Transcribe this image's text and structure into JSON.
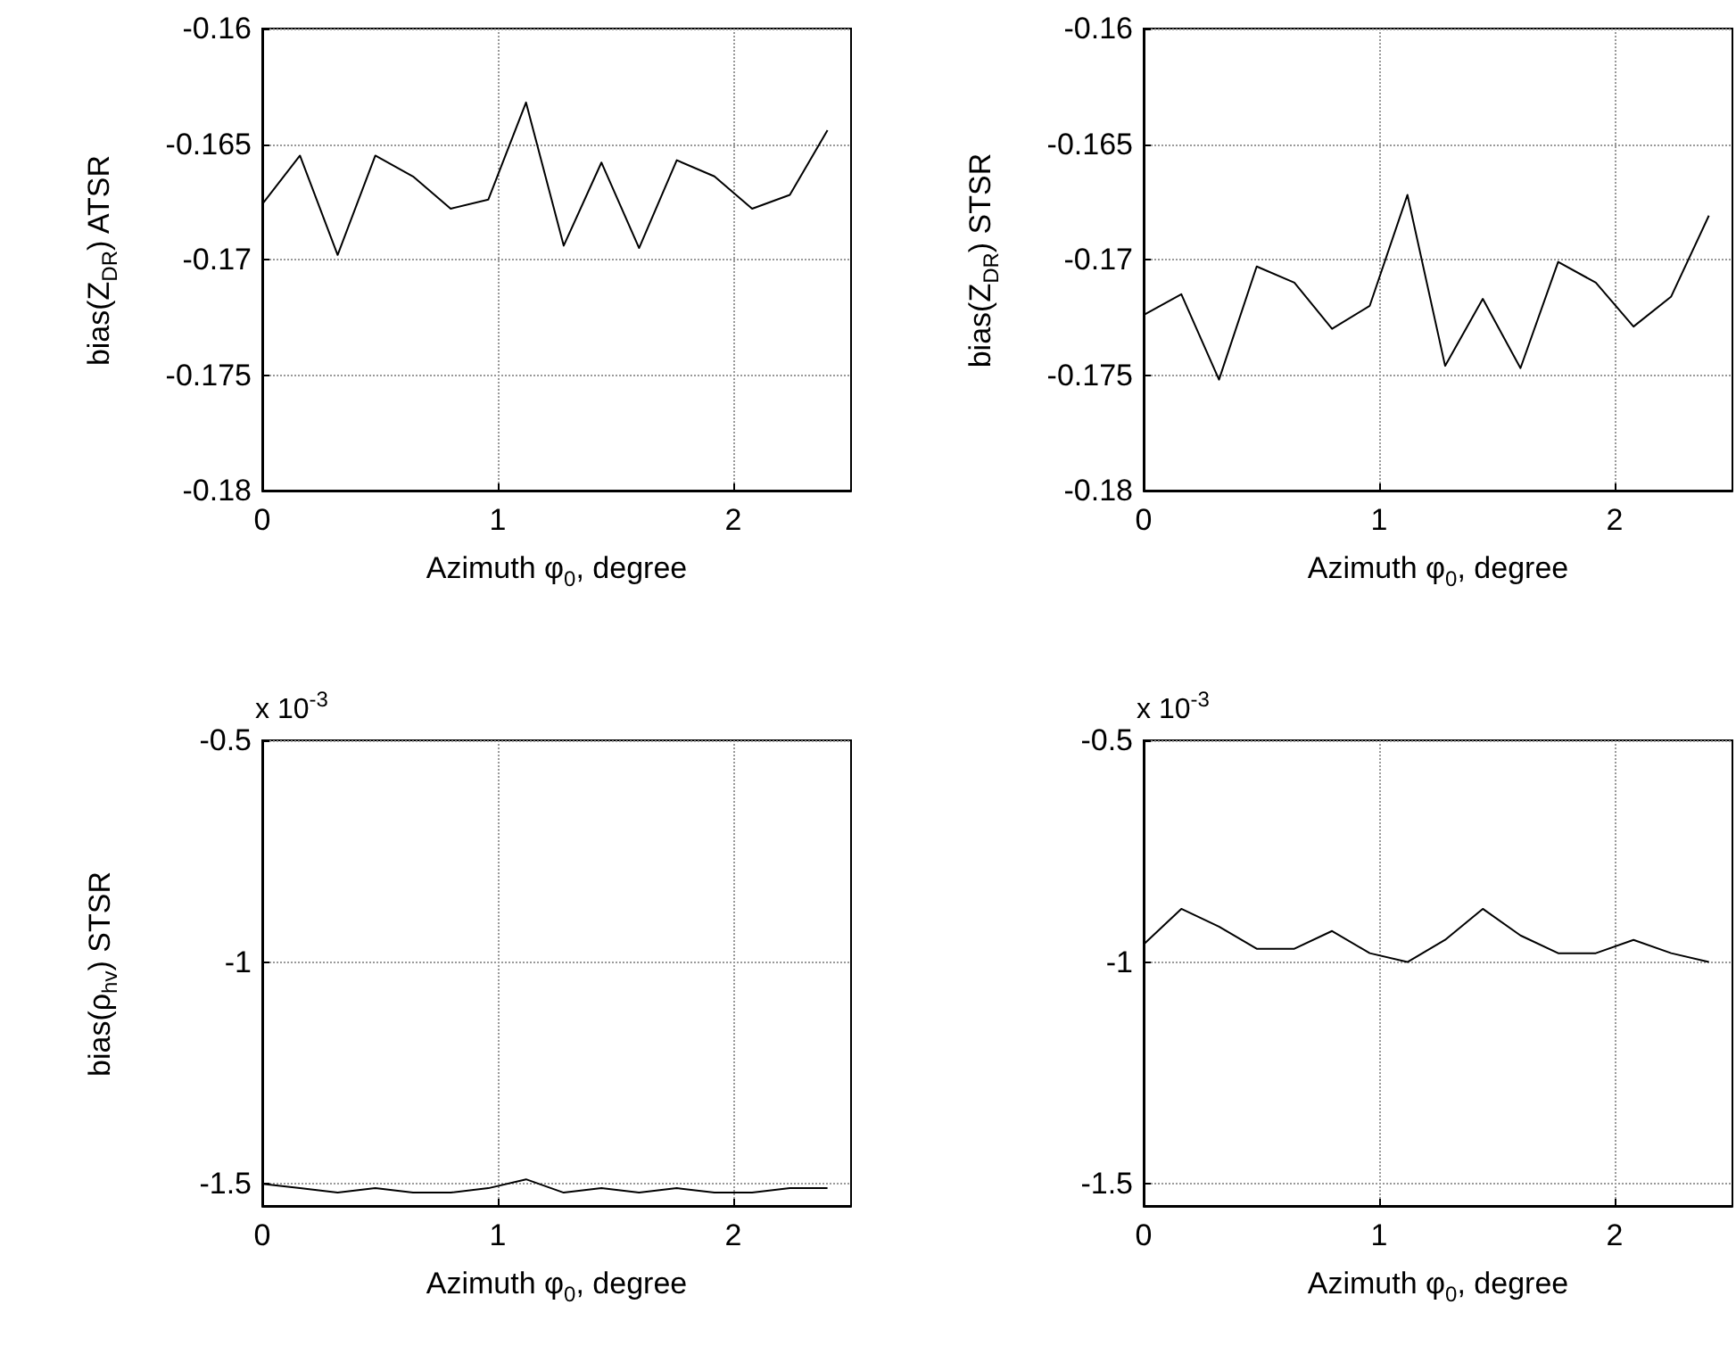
{
  "chart_data": [
    {
      "type": "line",
      "ylabel": "bias(Z$_{DR}$) ATSR",
      "xlabel": "Azimuth φ$_{0}$, degree",
      "xlim": [
        0,
        2.5
      ],
      "xticks": [
        0,
        1,
        2
      ],
      "ylim": [
        -0.18,
        -0.16
      ],
      "yticks": [
        -0.18,
        -0.175,
        -0.17,
        -0.165,
        -0.16
      ],
      "grid": true,
      "marker": "none",
      "line_style": "solid",
      "x": [
        0,
        0.16,
        0.32,
        0.48,
        0.64,
        0.8,
        0.96,
        1.12,
        1.28,
        1.44,
        1.6,
        1.76,
        1.92,
        2.08,
        2.24,
        2.4
      ],
      "series": [
        {
          "color": "#000000",
          "values": [
            -0.1676,
            -0.1655,
            -0.1698,
            -0.1655,
            -0.1664,
            -0.1678,
            -0.1674,
            -0.1632,
            -0.1694,
            -0.1658,
            -0.1695,
            -0.1657,
            -0.1664,
            -0.1678,
            -0.1672,
            -0.1644
          ]
        }
      ]
    },
    {
      "type": "line",
      "ylabel": "bias(Z$_{DR}$) STSR",
      "xlabel": "Azimuth φ$_{0}$, degree",
      "xlim": [
        0,
        2.5
      ],
      "xticks": [
        0,
        1,
        2
      ],
      "ylim": [
        -0.18,
        -0.16
      ],
      "yticks": [
        -0.18,
        -0.175,
        -0.17,
        -0.165,
        -0.16
      ],
      "grid": true,
      "marker": "none",
      "line_style": "solid",
      "x": [
        0,
        0.16,
        0.32,
        0.48,
        0.64,
        0.8,
        0.96,
        1.12,
        1.28,
        1.44,
        1.6,
        1.76,
        1.92,
        2.08,
        2.24,
        2.4
      ],
      "series": [
        {
          "color": "#000000",
          "values": [
            -0.1724,
            -0.1715,
            -0.1752,
            -0.1703,
            -0.171,
            -0.173,
            -0.172,
            -0.1672,
            -0.1746,
            -0.1717,
            -0.1747,
            -0.1701,
            -0.171,
            -0.1729,
            -0.1716,
            -0.1681
          ]
        }
      ]
    },
    {
      "type": "line",
      "ylabel": "bias(ρ$_{hv}$) STSR",
      "xlabel": "Azimuth φ$_{0}$, degree",
      "annotations": [
        "x 10$^{-3}$"
      ],
      "xlim": [
        0,
        2.5
      ],
      "xticks": [
        0,
        1,
        2
      ],
      "ylim": [
        -1.55,
        -0.5
      ],
      "yticks": [
        -1.5,
        -1,
        -0.5
      ],
      "grid": true,
      "marker": "none",
      "line_style": "solid",
      "x": [
        0,
        0.16,
        0.32,
        0.48,
        0.64,
        0.8,
        0.96,
        1.12,
        1.28,
        1.44,
        1.6,
        1.76,
        1.92,
        2.08,
        2.24,
        2.4
      ],
      "series": [
        {
          "color": "#000000",
          "values": [
            -1.5,
            -1.51,
            -1.52,
            -1.51,
            -1.52,
            -1.52,
            -1.51,
            -1.49,
            -1.52,
            -1.51,
            -1.52,
            -1.51,
            -1.52,
            -1.52,
            -1.51,
            -1.51
          ]
        }
      ]
    },
    {
      "type": "line",
      "xlabel": "Azimuth φ$_{0}$, degree",
      "annotations": [
        "x 10$^{-3}$"
      ],
      "xlim": [
        0,
        2.5
      ],
      "xticks": [
        0,
        1,
        2
      ],
      "ylim": [
        -1.55,
        -0.5
      ],
      "yticks": [
        -1.5,
        -1,
        -0.5
      ],
      "grid": true,
      "marker": "none",
      "line_style": "solid",
      "x": [
        0,
        0.16,
        0.32,
        0.48,
        0.64,
        0.8,
        0.96,
        1.12,
        1.28,
        1.44,
        1.6,
        1.76,
        1.92,
        2.08,
        2.24,
        2.4
      ],
      "series": [
        {
          "color": "#000000",
          "values": [
            -0.96,
            -0.88,
            -0.92,
            -0.97,
            -0.97,
            -0.93,
            -0.98,
            -1.0,
            -0.95,
            -0.88,
            -0.94,
            -0.98,
            -0.98,
            -0.95,
            -0.98,
            -1.0
          ]
        }
      ]
    }
  ]
}
